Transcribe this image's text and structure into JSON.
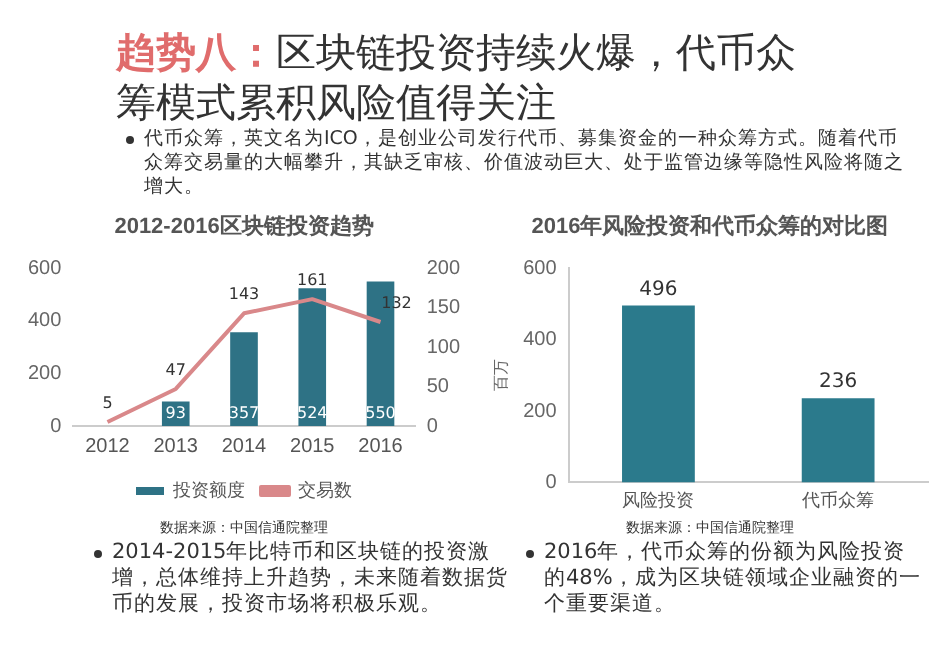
{
  "chart_data": [
    {
      "type": "other",
      "title": "趋势八：区块链投资持续火爆，代币众筹模式累积风险值得关注",
      "annotations": [
        "代币众筹，英文名为ICO，是创业公司发行代币、募集资金的一种众筹方式。随着代币众筹交易量的大幅攀升，其缺乏审核、价值波动巨大、处于监管边缘等隐性风险将随之增大。"
      ]
    },
    {
      "type": "bar",
      "title": "2012-2016区块链投资趋势",
      "categories": [
        "2012",
        "2013",
        "2014",
        "2015",
        "2016"
      ],
      "series": [
        {
          "name": "投资额度",
          "type": "bar",
          "color": "#2e7285",
          "values": [
            null,
            93,
            357,
            524,
            550
          ]
        },
        {
          "name": "交易数",
          "type": "line",
          "axis": "y2",
          "color": "#d9888a",
          "values": [
            5,
            47,
            143,
            161,
            132
          ]
        }
      ],
      "ylim": [
        0,
        600
      ],
      "yticks": [
        0,
        200,
        400,
        600
      ],
      "y2lim": [
        0,
        200
      ],
      "y2ticks": [
        0,
        50,
        100,
        150,
        200
      ],
      "legend": "bottom",
      "marker": "none",
      "data_labels": true,
      "annotations": [
        "数据来源：中国信通院整理",
        "2014-2015年比特币和区块链的投资激增，总体维持上升趋势，未来随着数据货币的发展，投资市场将积极乐观。"
      ]
    },
    {
      "type": "bar",
      "title": "2016年风险投资和代币众筹的对比图",
      "ylabel": "百万",
      "categories": [
        "风险投资",
        "代币众筹"
      ],
      "values": [
        496,
        236
      ],
      "color": "#2b7a8c",
      "ylim": [
        0,
        600
      ],
      "yticks": [
        0,
        200,
        400,
        600
      ],
      "data_labels": true,
      "annotations": [
        "数据来源：中国信通院整理",
        "2016年，代币众筹的份额为风险投资的48%，成为区块链领域企业融资的一个重要渠道。"
      ]
    }
  ]
}
